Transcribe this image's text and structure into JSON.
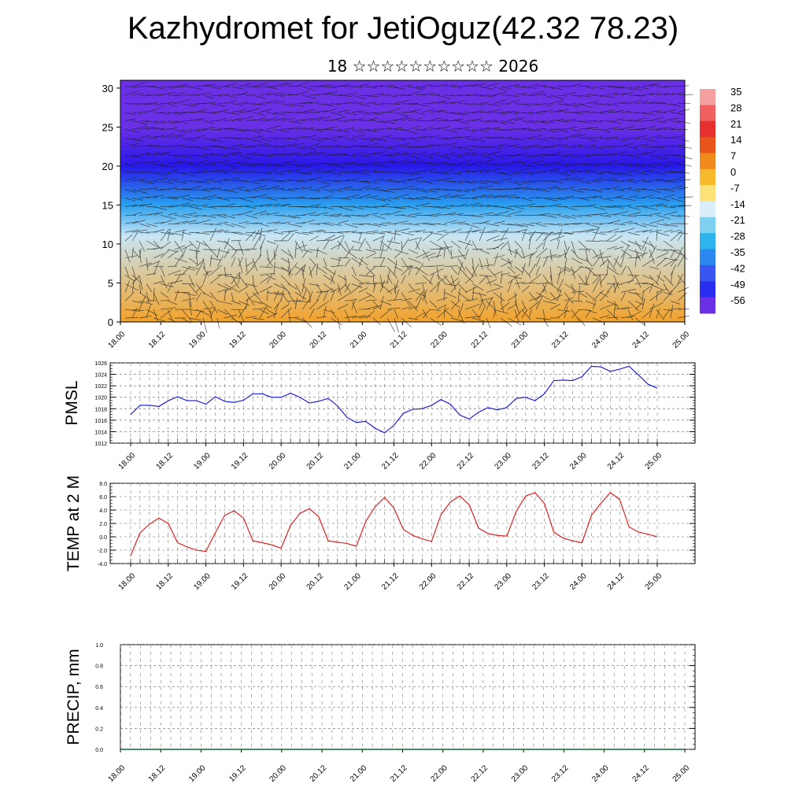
{
  "title": "Kazhydromet for JetiOguz(42.32 78.23)",
  "subtitle": "18 ☆☆☆☆☆☆☆☆☆☆ 2026",
  "colors": {
    "pmsl_line": "#1010dd",
    "temp_line": "#dd1010",
    "grid": "#666666"
  },
  "x_tick_labels": [
    "18.00",
    "18.12",
    "19.00",
    "19.12",
    "20.00",
    "20.12",
    "21.00",
    "21.12",
    "22.00",
    "22.12",
    "23.00",
    "23.12",
    "24.00",
    "24.12",
    "25.00"
  ],
  "chart_data": [
    {
      "type": "heatmap",
      "name": "vertical-section",
      "xlabel": "",
      "ylabel": "",
      "ylim": [
        0,
        31
      ],
      "y_ticks": [
        0,
        5,
        10,
        15,
        20,
        25,
        30
      ],
      "colorbar_labels": [
        "35",
        "28",
        "21",
        "14",
        "7",
        "0",
        "-7",
        "-14",
        "-21",
        "-28",
        "-35",
        "-42",
        "-49",
        "-56"
      ],
      "levels_temperature_approx": [
        {
          "level": 0,
          "value": 0
        },
        {
          "level": 11,
          "value": -14
        },
        {
          "level": 15,
          "value": -28
        },
        {
          "level": 20,
          "value": -56
        },
        {
          "level": 25,
          "value": -49
        },
        {
          "level": 31,
          "value": -49
        }
      ],
      "overlay": "wind barbs"
    },
    {
      "type": "line",
      "name": "PMSL",
      "ylabel": "PMSL",
      "ylim": [
        1012,
        1026
      ],
      "y_ticks": [
        "1012",
        "1014",
        "1016",
        "1018",
        "1020",
        "1022",
        "1024",
        "1026"
      ],
      "series": [
        {
          "name": "",
          "values": [
            1017.0,
            1018.6,
            1018.6,
            1018.4,
            1019.4,
            1020.1,
            1019.4,
            1019.4,
            1018.8,
            1020.1,
            1019.3,
            1019.1,
            1019.5,
            1020.6,
            1020.6,
            1020.0,
            1020.0,
            1020.7,
            1020.0,
            1019.0,
            1019.3,
            1019.8,
            1018.5,
            1016.5,
            1015.6,
            1015.8,
            1014.6,
            1013.8,
            1015.1,
            1017.2,
            1017.9,
            1018.0,
            1018.6,
            1019.6,
            1018.8,
            1016.9,
            1016.2,
            1017.4,
            1018.2,
            1017.8,
            1018.2,
            1019.8,
            1020.0,
            1019.4,
            1020.6,
            1022.9,
            1023.0,
            1022.9,
            1023.6,
            1025.4,
            1025.3,
            1024.5,
            1024.9,
            1025.4,
            1023.9,
            1022.3,
            1021.6
          ]
        }
      ]
    },
    {
      "type": "line",
      "name": "TEMP at 2 M",
      "ylabel": "TEMP at 2 M",
      "ylim": [
        -4,
        8
      ],
      "y_ticks": [
        "-4.0",
        "-2.0",
        "0.0",
        "2.0",
        "4.0",
        "6.0",
        "8.0"
      ],
      "series": [
        {
          "name": "",
          "values": [
            -2.8,
            0.6,
            1.9,
            2.8,
            2.0,
            -0.9,
            -1.5,
            -2.0,
            -2.2,
            0.6,
            3.2,
            3.9,
            2.8,
            -0.6,
            -0.9,
            -1.2,
            -1.7,
            1.7,
            3.5,
            4.2,
            3.0,
            -0.6,
            -0.8,
            -1.0,
            -1.4,
            2.3,
            4.5,
            5.9,
            4.3,
            1.1,
            0.2,
            -0.3,
            -0.7,
            3.3,
            5.2,
            6.1,
            4.8,
            1.3,
            0.5,
            0.2,
            0.1,
            3.8,
            6.1,
            6.6,
            5.0,
            0.7,
            -0.2,
            -0.6,
            -0.9,
            3.2,
            5.0,
            6.6,
            5.6,
            1.5,
            0.7,
            0.4,
            0.0
          ]
        }
      ]
    },
    {
      "type": "line",
      "name": "PRECIP, mm",
      "ylabel": "PRECIP, mm",
      "ylim": [
        0,
        1
      ],
      "y_ticks": [
        "0.0",
        "0.2",
        "0.4",
        "0.6",
        "0.8",
        "1.0"
      ],
      "series": [
        {
          "name": "",
          "values": [
            0,
            0,
            0,
            0,
            0,
            0,
            0,
            0,
            0,
            0,
            0,
            0,
            0,
            0,
            0,
            0,
            0,
            0,
            0,
            0,
            0,
            0,
            0,
            0,
            0,
            0,
            0,
            0,
            0,
            0,
            0,
            0,
            0,
            0,
            0,
            0,
            0,
            0,
            0,
            0,
            0,
            0,
            0,
            0,
            0,
            0,
            0,
            0,
            0,
            0,
            0,
            0,
            0,
            0,
            0,
            0,
            0
          ]
        }
      ]
    }
  ]
}
